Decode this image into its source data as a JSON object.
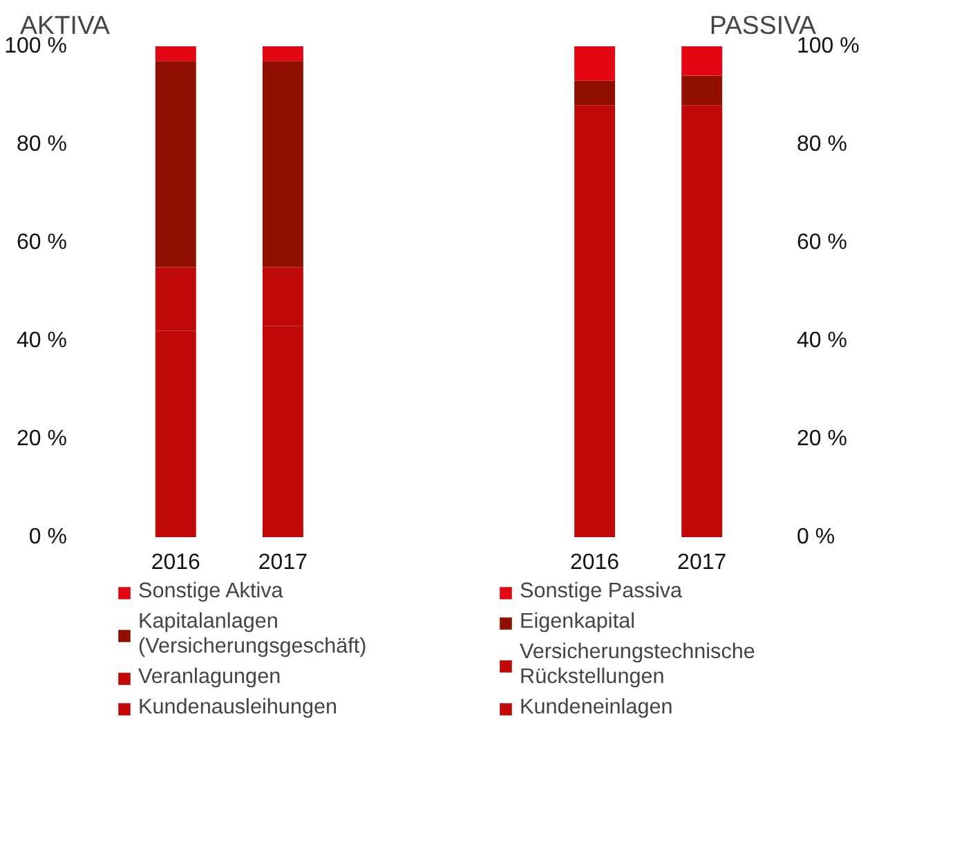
{
  "chart_data": [
    {
      "type": "bar",
      "title": "AKTIVA",
      "stacked": true,
      "categories": [
        "2016",
        "2017"
      ],
      "ylim": [
        0,
        100
      ],
      "yticks": [
        {
          "value": 0,
          "label": "0 %"
        },
        {
          "value": 20,
          "label": "20 %"
        },
        {
          "value": 40,
          "label": "40 %"
        },
        {
          "value": 60,
          "label": "60 %"
        },
        {
          "value": 80,
          "label": "80 %"
        },
        {
          "value": 100,
          "label": "100 %"
        }
      ],
      "grid": false,
      "legend": "bottom",
      "series": [
        {
          "name": "Kundenausleihungen",
          "color": "#c00a0a",
          "values": [
            42,
            43
          ]
        },
        {
          "name": "Veranlagungen",
          "color": "#c00a0a",
          "values": [
            13,
            12
          ]
        },
        {
          "name": "Kapitalanlagen\n(Versicherungsgeschäft)",
          "color": "#910f00",
          "values": [
            42,
            42
          ]
        },
        {
          "name": "Sonstige Aktiva",
          "color": "#e30613",
          "values": [
            3,
            3
          ]
        }
      ]
    },
    {
      "type": "bar",
      "title": "PASSIVA",
      "stacked": true,
      "categories": [
        "2016",
        "2017"
      ],
      "ylim": [
        0,
        100
      ],
      "yticks": [
        {
          "value": 0,
          "label": "0 %"
        },
        {
          "value": 20,
          "label": "20 %"
        },
        {
          "value": 40,
          "label": "40 %"
        },
        {
          "value": 60,
          "label": "60 %"
        },
        {
          "value": 80,
          "label": "80 %"
        },
        {
          "value": 100,
          "label": "100 %"
        }
      ],
      "grid": false,
      "legend": "bottom",
      "series": [
        {
          "name": "Kundeneinlagen",
          "color": "#c00a0a",
          "values": [
            49,
            50
          ]
        },
        {
          "name": "Versicherungstechnische\nRückstellungen",
          "color": "#c00a0a",
          "values": [
            39,
            38
          ]
        },
        {
          "name": "Eigenkapital",
          "color": "#910f00",
          "values": [
            5,
            6
          ]
        },
        {
          "name": "Sonstige Passiva",
          "color": "#e30613",
          "values": [
            7,
            6
          ]
        }
      ]
    }
  ]
}
